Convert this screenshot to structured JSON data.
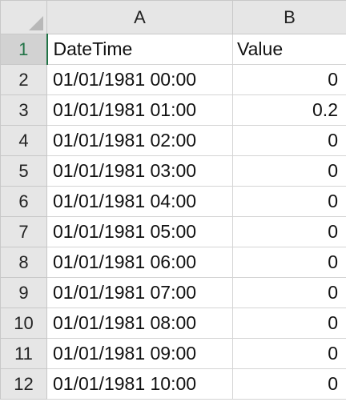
{
  "columns": [
    "A",
    "B"
  ],
  "rows": [
    {
      "num": "1",
      "a": "DateTime",
      "b": "Value"
    },
    {
      "num": "2",
      "a": "01/01/1981 00:00",
      "b": "0"
    },
    {
      "num": "3",
      "a": "01/01/1981 01:00",
      "b": "0.2"
    },
    {
      "num": "4",
      "a": "01/01/1981 02:00",
      "b": "0"
    },
    {
      "num": "5",
      "a": "01/01/1981 03:00",
      "b": "0"
    },
    {
      "num": "6",
      "a": "01/01/1981 04:00",
      "b": "0"
    },
    {
      "num": "7",
      "a": "01/01/1981 05:00",
      "b": "0"
    },
    {
      "num": "8",
      "a": "01/01/1981 06:00",
      "b": "0"
    },
    {
      "num": "9",
      "a": "01/01/1981 07:00",
      "b": "0"
    },
    {
      "num": "10",
      "a": "01/01/1981 08:00",
      "b": "0"
    },
    {
      "num": "11",
      "a": "01/01/1981 09:00",
      "b": "0"
    },
    {
      "num": "12",
      "a": "01/01/1981 10:00",
      "b": "0"
    }
  ],
  "selected_row": "1",
  "colors": {
    "header_bg": "#e6e6e6",
    "selected_accent": "#217346",
    "gridline": "#d4d4d4"
  }
}
